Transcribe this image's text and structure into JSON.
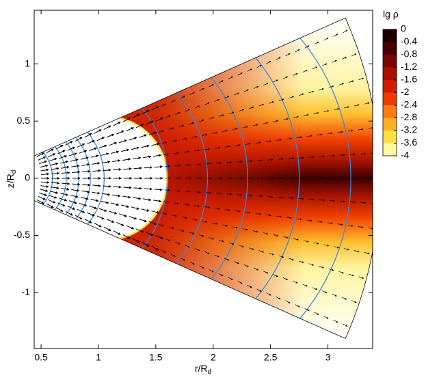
{
  "chart_data": {
    "type": "contour",
    "xlabel": "r/R",
    "xlabel_sub": "d",
    "ylabel": "z/R",
    "ylabel_sub": "d",
    "xlim": [
      0.44,
      3.39
    ],
    "xticks": [
      0.5,
      1,
      1.5,
      2,
      2.5,
      3
    ],
    "ylim": [
      -1.49,
      1.47
    ],
    "yticks": [
      -1,
      -0.5,
      0,
      0.5,
      1
    ],
    "colorbar": {
      "label": "lg ρ",
      "ticks": [
        0,
        -0.4,
        -0.8,
        -1.2,
        -1.6,
        -2,
        -2.4,
        -2.8,
        -3.2,
        -3.6,
        -4
      ],
      "colors": [
        "#1a0000",
        "#4a0000",
        "#7a0800",
        "#a81000",
        "#d41a00",
        "#f03a00",
        "#ff7a10",
        "#ffb020",
        "#ffe040",
        "#fff8a0"
      ]
    }
  }
}
